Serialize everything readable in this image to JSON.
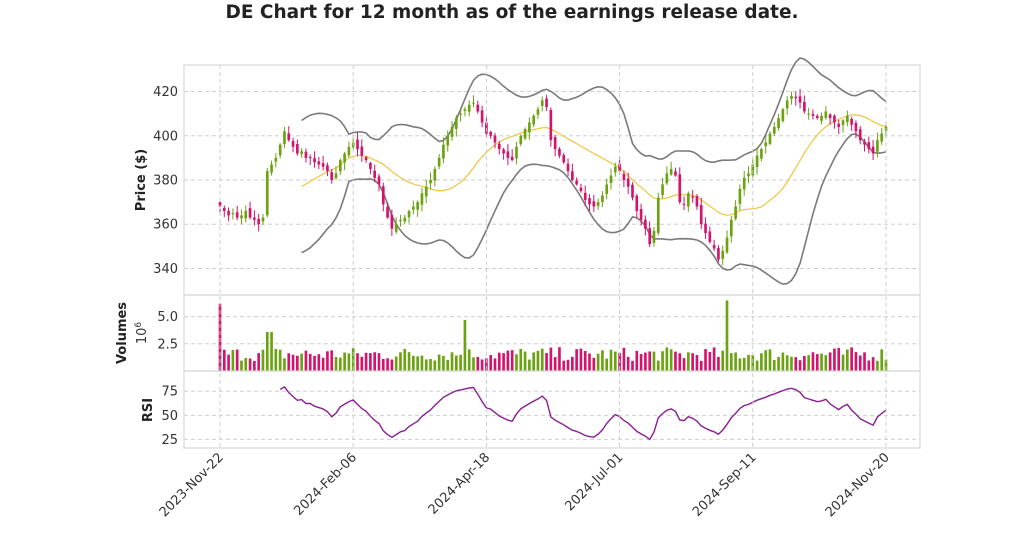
{
  "chart_data": {
    "type": "candlestick",
    "title": "DE Chart for 12 month as of the earnings release date.",
    "ticker": "DE",
    "x_tick_labels": [
      "2023-Nov-22",
      "2024-Feb-06",
      "2024-Apr-18",
      "2024-Jul-01",
      "2024-Sep-11",
      "2024-Nov-20"
    ],
    "x_range": [
      "2023-11-22",
      "2024-11-20"
    ],
    "colors": {
      "up": "#6aa30f",
      "down": "#d4136b",
      "ma": "#f2c43b",
      "bands": "#7a7a7a",
      "rsi": "#8a1e93",
      "grid": "#cccccc"
    },
    "panels": {
      "price": {
        "ylabel": "Price ($)",
        "ylim": [
          328,
          432
        ],
        "yticks": [
          340,
          360,
          380,
          400,
          420
        ]
      },
      "volume": {
        "ylabel": "Volumes",
        "multiplier_label": "10",
        "multiplier_exp": "6",
        "ylim": [
          0,
          7.0
        ],
        "yticks": [
          2.5,
          5.0
        ],
        "ytick_labels": [
          "2.5",
          "5.0"
        ]
      },
      "rsi": {
        "ylabel": "RSI",
        "ylim": [
          16,
          96
        ],
        "yticks": [
          25,
          50,
          75
        ]
      }
    },
    "close_series": {
      "description": "approximate daily closing prices read from the chart; dates are trading days starting 2023-11-22",
      "start_date": "2023-11-22",
      "values": [
        368,
        366,
        364,
        365,
        363,
        364,
        366,
        363,
        362,
        360,
        363,
        384,
        387,
        390,
        396,
        402,
        398,
        395,
        392,
        393,
        390,
        390,
        388,
        387,
        386,
        384,
        380,
        383,
        389,
        392,
        395,
        397,
        394,
        391,
        389,
        385,
        381,
        378,
        369,
        363,
        358,
        360,
        362,
        363,
        366,
        368,
        370,
        374,
        377,
        380,
        385,
        390,
        396,
        400,
        404,
        408,
        410,
        412,
        414,
        415,
        411,
        406,
        401,
        400,
        397,
        394,
        392,
        390,
        389,
        395,
        400,
        403,
        406,
        409,
        412,
        416,
        413,
        398,
        394,
        391,
        388,
        384,
        380,
        378,
        375,
        371,
        369,
        368,
        370,
        373,
        378,
        382,
        386,
        384,
        380,
        377,
        372,
        366,
        362,
        358,
        351,
        357,
        372,
        378,
        383,
        385,
        382,
        370,
        369,
        374,
        372,
        368,
        360,
        356,
        352,
        349,
        344,
        348,
        354,
        362,
        368,
        376,
        381,
        383,
        387,
        391,
        394,
        397,
        401,
        404,
        408,
        412,
        416,
        418,
        417,
        415,
        411,
        410,
        409,
        408,
        409,
        411,
        408,
        406,
        404,
        407,
        409,
        405,
        402,
        398,
        396,
        394,
        392,
        398,
        401,
        404
      ]
    }
  }
}
